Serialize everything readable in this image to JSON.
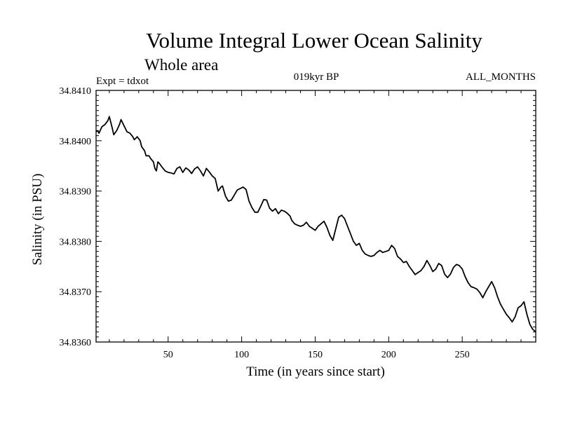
{
  "chart_data": {
    "type": "line",
    "title": "Volume Integral Lower Ocean Salinity",
    "subtitle": "Whole area",
    "experiment": "Expt = tdxot",
    "period": "019kyr BP",
    "months": "ALL_MONTHS",
    "xlabel": "Time (in years since start)",
    "ylabel": "Salinity (in PSU)",
    "xlim": [
      1,
      300
    ],
    "ylim": [
      34.836,
      34.841
    ],
    "x_ticks": [
      50,
      100,
      150,
      200,
      250
    ],
    "x_tick_labels": [
      "50",
      "100",
      "150",
      "200",
      "250"
    ],
    "y_ticks": [
      34.836,
      34.837,
      34.838,
      34.839,
      34.84,
      34.841
    ],
    "y_tick_labels": [
      "34.8360",
      "34.8370",
      "34.8380",
      "34.8390",
      "34.8400",
      "34.8410"
    ],
    "grid": false,
    "series": [
      {
        "color": "#000000",
        "points": [
          [
            1,
            34.84018
          ],
          [
            2,
            34.8402
          ],
          [
            3,
            34.84015
          ],
          [
            5,
            34.84028
          ],
          [
            7,
            34.84032
          ],
          [
            9,
            34.8404
          ],
          [
            10,
            34.84048
          ],
          [
            12,
            34.84025
          ],
          [
            13,
            34.84012
          ],
          [
            15,
            34.8402
          ],
          [
            17,
            34.84033
          ],
          [
            18,
            34.84042
          ],
          [
            20,
            34.8403
          ],
          [
            22,
            34.84018
          ],
          [
            24,
            34.84015
          ],
          [
            26,
            34.84008
          ],
          [
            27,
            34.84002
          ],
          [
            29,
            34.84008
          ],
          [
            31,
            34.84
          ],
          [
            32,
            34.83988
          ],
          [
            34,
            34.8398
          ],
          [
            35,
            34.8397
          ],
          [
            37,
            34.8397
          ],
          [
            38,
            34.83965
          ],
          [
            40,
            34.83958
          ],
          [
            41,
            34.83945
          ],
          [
            42,
            34.8394
          ],
          [
            43,
            34.83958
          ],
          [
            44,
            34.83955
          ],
          [
            46,
            34.83947
          ],
          [
            48,
            34.8394
          ],
          [
            50,
            34.83937
          ],
          [
            52,
            34.83936
          ],
          [
            54,
            34.83934
          ],
          [
            56,
            34.83945
          ],
          [
            58,
            34.83948
          ],
          [
            60,
            34.83937
          ],
          [
            62,
            34.83946
          ],
          [
            64,
            34.83942
          ],
          [
            66,
            34.83935
          ],
          [
            68,
            34.83944
          ],
          [
            70,
            34.83948
          ],
          [
            72,
            34.8394
          ],
          [
            74,
            34.8393
          ],
          [
            76,
            34.83945
          ],
          [
            78,
            34.83938
          ],
          [
            80,
            34.8393
          ],
          [
            82,
            34.83925
          ],
          [
            84,
            34.839
          ],
          [
            86,
            34.83908
          ],
          [
            87,
            34.8391
          ],
          [
            89,
            34.8389
          ],
          [
            91,
            34.8388
          ],
          [
            93,
            34.83882
          ],
          [
            95,
            34.83892
          ],
          [
            97,
            34.83902
          ],
          [
            99,
            34.83905
          ],
          [
            101,
            34.83908
          ],
          [
            103,
            34.83903
          ],
          [
            105,
            34.8388
          ],
          [
            107,
            34.83867
          ],
          [
            109,
            34.83858
          ],
          [
            111,
            34.83858
          ],
          [
            113,
            34.8387
          ],
          [
            115,
            34.83883
          ],
          [
            117,
            34.83882
          ],
          [
            119,
            34.83866
          ],
          [
            121,
            34.8386
          ],
          [
            123,
            34.83865
          ],
          [
            125,
            34.83855
          ],
          [
            127,
            34.83862
          ],
          [
            129,
            34.8386
          ],
          [
            131,
            34.83856
          ],
          [
            133,
            34.8385
          ],
          [
            134,
            34.83842
          ],
          [
            136,
            34.83835
          ],
          [
            138,
            34.83832
          ],
          [
            140,
            34.8383
          ],
          [
            142,
            34.83832
          ],
          [
            144,
            34.83838
          ],
          [
            146,
            34.8383
          ],
          [
            148,
            34.83826
          ],
          [
            150,
            34.83822
          ],
          [
            152,
            34.8383
          ],
          [
            154,
            34.83835
          ],
          [
            156,
            34.8384
          ],
          [
            158,
            34.83828
          ],
          [
            160,
            34.83812
          ],
          [
            162,
            34.83802
          ],
          [
            164,
            34.83825
          ],
          [
            166,
            34.83848
          ],
          [
            168,
            34.83852
          ],
          [
            170,
            34.83845
          ],
          [
            172,
            34.8383
          ],
          [
            174,
            34.83815
          ],
          [
            176,
            34.838
          ],
          [
            178,
            34.83792
          ],
          [
            180,
            34.83796
          ],
          [
            182,
            34.83782
          ],
          [
            184,
            34.83775
          ],
          [
            186,
            34.83772
          ],
          [
            188,
            34.8377
          ],
          [
            190,
            34.83772
          ],
          [
            192,
            34.83778
          ],
          [
            194,
            34.83782
          ],
          [
            196,
            34.83778
          ],
          [
            198,
            34.8378
          ],
          [
            200,
            34.83782
          ],
          [
            202,
            34.83792
          ],
          [
            204,
            34.83786
          ],
          [
            206,
            34.8377
          ],
          [
            208,
            34.83765
          ],
          [
            210,
            34.83758
          ],
          [
            212,
            34.8376
          ],
          [
            214,
            34.8375
          ],
          [
            216,
            34.83742
          ],
          [
            218,
            34.83734
          ],
          [
            220,
            34.83738
          ],
          [
            222,
            34.83742
          ],
          [
            224,
            34.8375
          ],
          [
            226,
            34.83762
          ],
          [
            228,
            34.83752
          ],
          [
            230,
            34.8374
          ],
          [
            232,
            34.83745
          ],
          [
            234,
            34.83756
          ],
          [
            236,
            34.83752
          ],
          [
            238,
            34.83735
          ],
          [
            240,
            34.83728
          ],
          [
            242,
            34.83735
          ],
          [
            244,
            34.83748
          ],
          [
            246,
            34.83754
          ],
          [
            248,
            34.83752
          ],
          [
            250,
            34.83745
          ],
          [
            252,
            34.8373
          ],
          [
            254,
            34.83718
          ],
          [
            256,
            34.8371
          ],
          [
            258,
            34.83708
          ],
          [
            260,
            34.83705
          ],
          [
            262,
            34.83698
          ],
          [
            264,
            34.83688
          ],
          [
            266,
            34.837
          ],
          [
            268,
            34.8371
          ],
          [
            270,
            34.8372
          ],
          [
            272,
            34.83708
          ],
          [
            274,
            34.8369
          ],
          [
            276,
            34.83675
          ],
          [
            278,
            34.83665
          ],
          [
            280,
            34.83655
          ],
          [
            282,
            34.83648
          ],
          [
            284,
            34.8364
          ],
          [
            286,
            34.8365
          ],
          [
            288,
            34.83668
          ],
          [
            290,
            34.83672
          ],
          [
            292,
            34.8368
          ],
          [
            294,
            34.83655
          ],
          [
            296,
            34.83635
          ],
          [
            298,
            34.83625
          ],
          [
            300,
            34.8362
          ]
        ]
      }
    ]
  }
}
